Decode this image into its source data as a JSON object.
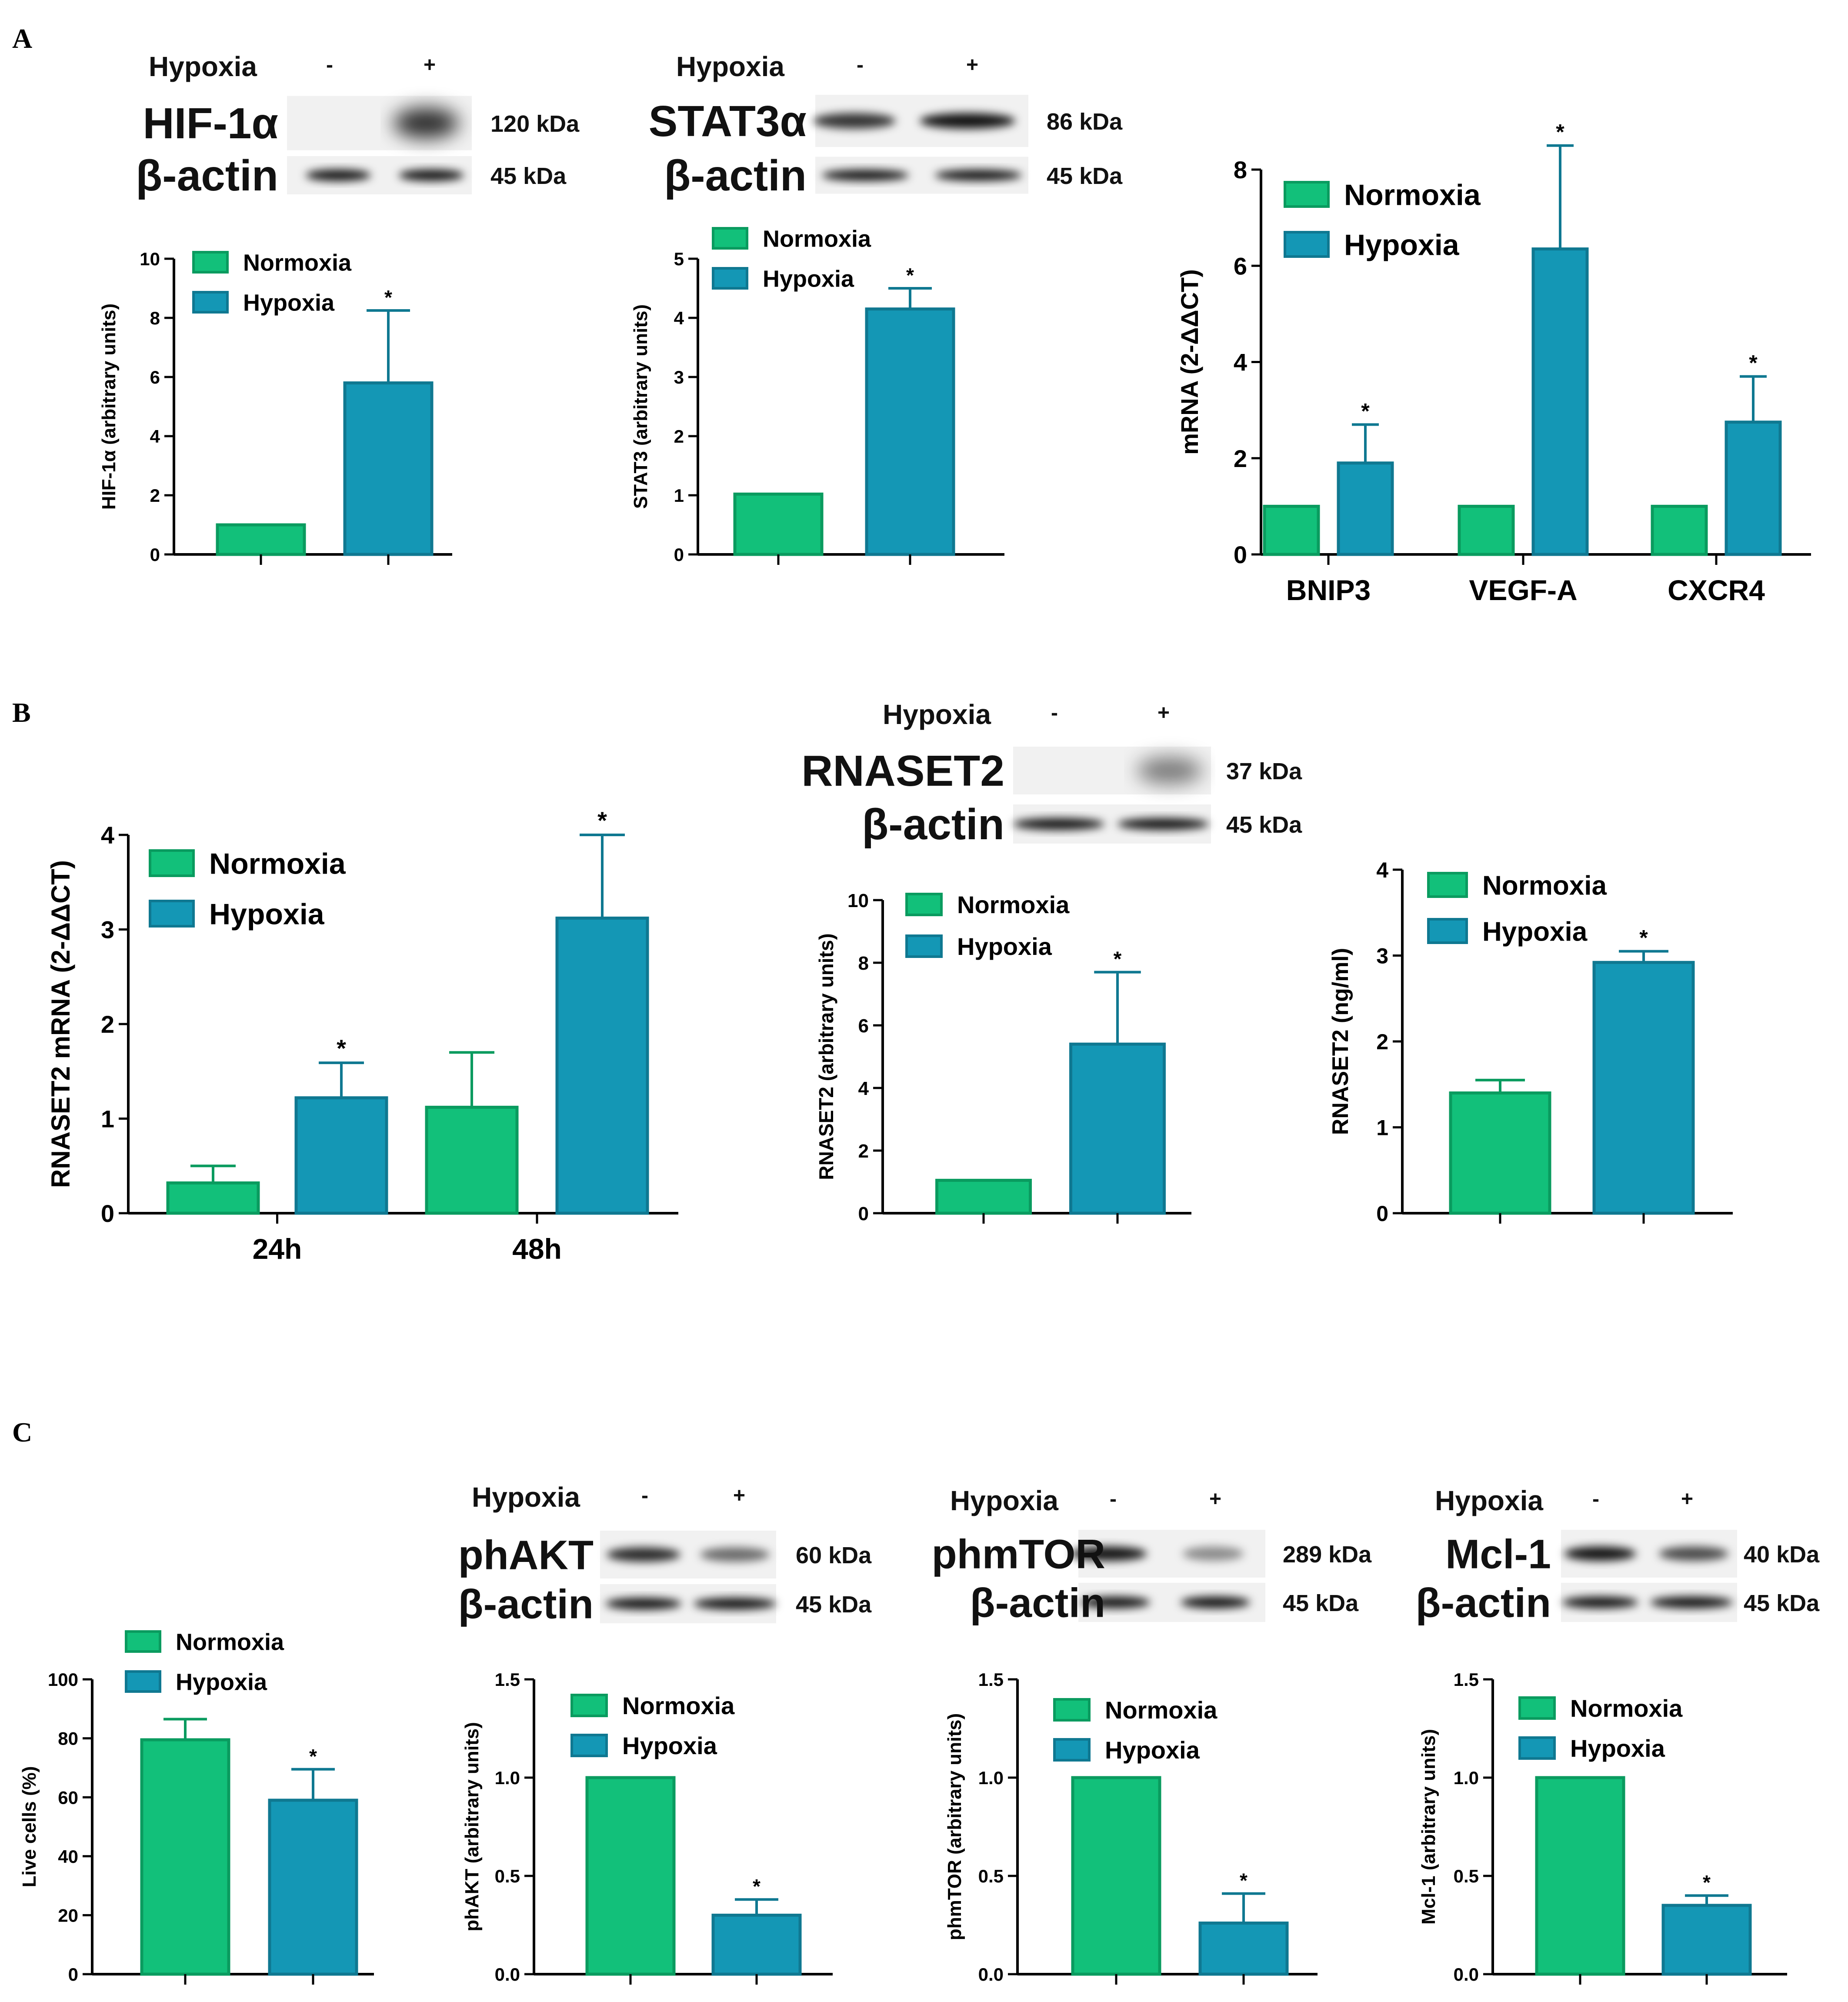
{
  "figure": {
    "panels": [
      {
        "label": "A"
      },
      {
        "label": "B"
      },
      {
        "label": "C"
      }
    ]
  },
  "blots": [
    {
      "id": "hif1a",
      "hypoxia_label": "Hypoxia",
      "signs": [
        "-",
        "+"
      ],
      "rows": [
        {
          "label": "HIF-1α",
          "kda": "120 kDa"
        },
        {
          "label": "β-actin",
          "kda": "45 kDa"
        }
      ]
    },
    {
      "id": "stat3",
      "hypoxia_label": "Hypoxia",
      "signs": [
        "-",
        "+"
      ],
      "rows": [
        {
          "label": "STAT3α",
          "kda": "86 kDa"
        },
        {
          "label": "β-actin",
          "kda": "45 kDa"
        }
      ]
    },
    {
      "id": "rnaset2",
      "hypoxia_label": "Hypoxia",
      "signs": [
        "-",
        "+"
      ],
      "rows": [
        {
          "label": "RNASET2",
          "kda": "37 kDa"
        },
        {
          "label": "β-actin",
          "kda": "45 kDa"
        }
      ]
    },
    {
      "id": "phakt",
      "hypoxia_label": "Hypoxia",
      "signs": [
        "-",
        "+"
      ],
      "rows": [
        {
          "label": "phAKT",
          "kda": "60 kDa"
        },
        {
          "label": "β-actin",
          "kda": "45 kDa"
        }
      ]
    },
    {
      "id": "phmtor",
      "hypoxia_label": "Hypoxia",
      "signs": [
        "-",
        "+"
      ],
      "rows": [
        {
          "label": "phmTOR",
          "kda": "289 kDa"
        },
        {
          "label": "β-actin",
          "kda": "45 kDa"
        }
      ]
    },
    {
      "id": "mcl1",
      "hypoxia_label": "Hypoxia",
      "signs": [
        "-",
        "+"
      ],
      "rows": [
        {
          "label": "Mcl-1",
          "kda": "40 kDa"
        },
        {
          "label": "β-actin",
          "kda": "45 kDa"
        }
      ]
    }
  ],
  "colors": {
    "normoxia": "#12c07a",
    "hypoxia": "#1497b5",
    "axis": "#000000"
  },
  "chart_data": [
    {
      "id": "a1",
      "type": "bar",
      "ylabel": "HIF-1α (arbitrary units)",
      "ylim": [
        0,
        10
      ],
      "yticks": [
        "0",
        "2",
        "4",
        "6",
        "8",
        "10"
      ],
      "categories": [
        ""
      ],
      "legend": [
        "Normoxia",
        "Hypoxia"
      ],
      "series": [
        {
          "name": "Normoxia",
          "values": [
            1.0
          ],
          "errors": [
            0
          ],
          "sig": [
            ""
          ]
        },
        {
          "name": "Hypoxia",
          "values": [
            5.8
          ],
          "errors": [
            2.45
          ],
          "sig": [
            "*"
          ]
        }
      ]
    },
    {
      "id": "a2",
      "type": "bar",
      "ylabel": "STAT3 (arbitrary units)",
      "ylim": [
        0,
        5
      ],
      "yticks": [
        "0",
        "1",
        "2",
        "3",
        "4",
        "5"
      ],
      "categories": [
        ""
      ],
      "legend": [
        "Normoxia",
        "Hypoxia"
      ],
      "series": [
        {
          "name": "Normoxia",
          "values": [
            1.02
          ],
          "errors": [
            0
          ],
          "sig": [
            ""
          ]
        },
        {
          "name": "Hypoxia",
          "values": [
            4.15
          ],
          "errors": [
            0.35
          ],
          "sig": [
            "*"
          ]
        }
      ]
    },
    {
      "id": "a3",
      "type": "bar",
      "ylabel": "mRNA (2-ΔΔCT)",
      "ylim": [
        0,
        9
      ],
      "yticks": [
        "0",
        "2",
        "4",
        "6",
        "8"
      ],
      "categories": [
        "BNIP3",
        "VEGF-A",
        "CXCR4"
      ],
      "legend": [
        "Normoxia",
        "Hypoxia"
      ],
      "series": [
        {
          "name": "Normoxia",
          "values": [
            1.0,
            1.0,
            1.0
          ],
          "errors": [
            0,
            0,
            0
          ],
          "sig": [
            "",
            "",
            ""
          ]
        },
        {
          "name": "Hypoxia",
          "values": [
            1.9,
            6.35,
            2.75
          ],
          "errors": [
            0.8,
            2.15,
            0.95
          ],
          "sig": [
            "*",
            "*",
            "*"
          ]
        }
      ]
    },
    {
      "id": "b1",
      "type": "bar",
      "ylabel": "RNASET2 mRNA (2-ΔΔCT)",
      "ylim": [
        0,
        4.5
      ],
      "yticks": [
        "0",
        "1",
        "2",
        "3",
        "4"
      ],
      "categories": [
        "24h",
        "48h"
      ],
      "legend": [
        "Normoxia",
        "Hypoxia"
      ],
      "series": [
        {
          "name": "Normoxia",
          "values": [
            0.32,
            1.12
          ],
          "errors": [
            0.18,
            0.58
          ],
          "sig": [
            "",
            ""
          ]
        },
        {
          "name": "Hypoxia",
          "values": [
            1.22,
            3.12
          ],
          "errors": [
            0.37,
            0.88
          ],
          "sig": [
            "*",
            "*"
          ]
        }
      ]
    },
    {
      "id": "b2",
      "type": "bar",
      "ylabel": "RNASET2 (arbitrary units)",
      "ylim": [
        0,
        10
      ],
      "yticks": [
        "0",
        "2",
        "4",
        "6",
        "8",
        "10"
      ],
      "categories": [
        ""
      ],
      "legend": [
        "Normoxia",
        "Hypoxia"
      ],
      "series": [
        {
          "name": "Normoxia",
          "values": [
            1.05
          ],
          "errors": [
            0
          ],
          "sig": [
            ""
          ]
        },
        {
          "name": "Hypoxia",
          "values": [
            5.4
          ],
          "errors": [
            2.3
          ],
          "sig": [
            "*"
          ]
        }
      ]
    },
    {
      "id": "b3",
      "type": "bar",
      "ylabel": "RNASET2 (ng/ml)",
      "ylim": [
        0,
        4
      ],
      "yticks": [
        "0",
        "1",
        "2",
        "3",
        "4"
      ],
      "categories": [
        ""
      ],
      "legend": [
        "Normoxia",
        "Hypoxia"
      ],
      "series": [
        {
          "name": "Normoxia",
          "values": [
            1.4
          ],
          "errors": [
            0.15
          ],
          "sig": [
            ""
          ]
        },
        {
          "name": "Hypoxia",
          "values": [
            2.92
          ],
          "errors": [
            0.13
          ],
          "sig": [
            "*"
          ]
        }
      ]
    },
    {
      "id": "c1",
      "type": "bar",
      "ylabel": "Live cells (%)",
      "ylim": [
        0,
        100
      ],
      "yticks": [
        "0",
        "20",
        "40",
        "60",
        "80",
        "100"
      ],
      "categories": [
        ""
      ],
      "legend": [
        "Normoxia",
        "Hypoxia"
      ],
      "series": [
        {
          "name": "Normoxia",
          "values": [
            79.5
          ],
          "errors": [
            7.0
          ],
          "sig": [
            ""
          ]
        },
        {
          "name": "Hypoxia",
          "values": [
            59.0
          ],
          "errors": [
            10.5
          ],
          "sig": [
            "*"
          ]
        }
      ]
    },
    {
      "id": "c2",
      "type": "bar",
      "ylabel": "phAKT (arbitrary units)",
      "ylim": [
        0,
        1.5
      ],
      "yticks": [
        "0.0",
        "0.5",
        "1.0",
        "1.5"
      ],
      "categories": [
        ""
      ],
      "legend": [
        "Normoxia",
        "Hypoxia"
      ],
      "series": [
        {
          "name": "Normoxia",
          "values": [
            1.0
          ],
          "errors": [
            0
          ],
          "sig": [
            ""
          ]
        },
        {
          "name": "Hypoxia",
          "values": [
            0.3
          ],
          "errors": [
            0.08
          ],
          "sig": [
            "*"
          ]
        }
      ]
    },
    {
      "id": "c3",
      "type": "bar",
      "ylabel": "phmTOR (arbitrary units)",
      "ylim": [
        0,
        1.5
      ],
      "yticks": [
        "0.0",
        "0.5",
        "1.0",
        "1.5"
      ],
      "categories": [
        ""
      ],
      "legend": [
        "Normoxia",
        "Hypoxia"
      ],
      "series": [
        {
          "name": "Normoxia",
          "values": [
            1.0
          ],
          "errors": [
            0
          ],
          "sig": [
            ""
          ]
        },
        {
          "name": "Hypoxia",
          "values": [
            0.26
          ],
          "errors": [
            0.15
          ],
          "sig": [
            "*"
          ]
        }
      ]
    },
    {
      "id": "c4",
      "type": "bar",
      "ylabel": "Mcl-1 (arbitrary units)",
      "ylim": [
        0,
        1.5
      ],
      "yticks": [
        "0.0",
        "0.5",
        "1.0",
        "1.5"
      ],
      "categories": [
        ""
      ],
      "legend": [
        "Normoxia",
        "Hypoxia"
      ],
      "series": [
        {
          "name": "Normoxia",
          "values": [
            1.0
          ],
          "errors": [
            0
          ],
          "sig": [
            ""
          ]
        },
        {
          "name": "Hypoxia",
          "values": [
            0.35
          ],
          "errors": [
            0.05
          ],
          "sig": [
            "*"
          ]
        }
      ]
    }
  ]
}
